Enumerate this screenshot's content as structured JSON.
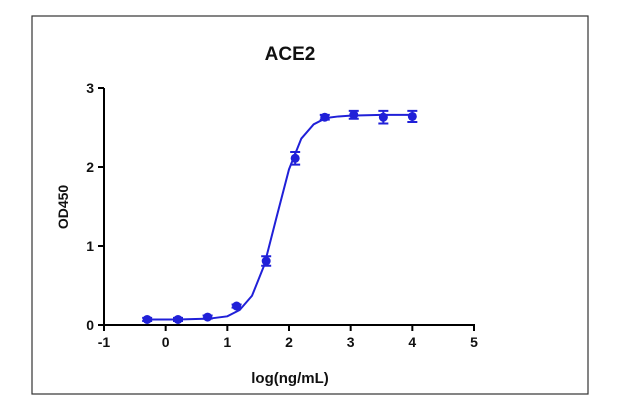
{
  "chart_data": {
    "type": "scatter",
    "title": "ACE2",
    "x_label": "log(ng/mL)",
    "y_label": "OD450",
    "color": "#2020d8",
    "x": [
      -0.3,
      0.2,
      0.68,
      1.15,
      1.63,
      2.1,
      2.58,
      3.05,
      3.53,
      4.0
    ],
    "values": [
      0.07,
      0.07,
      0.1,
      0.24,
      0.81,
      2.11,
      2.63,
      2.66,
      2.63,
      2.64
    ],
    "errors": [
      0.02,
      0.02,
      0.02,
      0.02,
      0.06,
      0.08,
      0.03,
      0.05,
      0.08,
      0.07
    ],
    "fit": {
      "x": [
        -0.3,
        0.2,
        0.7,
        1.0,
        1.2,
        1.4,
        1.6,
        1.8,
        2.0,
        2.2,
        2.4,
        2.6,
        2.8,
        3.0,
        3.5,
        4.0
      ],
      "values": [
        0.07,
        0.07,
        0.08,
        0.11,
        0.19,
        0.37,
        0.76,
        1.37,
        1.97,
        2.36,
        2.54,
        2.62,
        2.64,
        2.65,
        2.66,
        2.66
      ]
    },
    "xlim": [
      -1,
      5
    ],
    "xticks": [
      -1,
      0,
      1,
      2,
      3,
      4,
      5
    ],
    "ylim": [
      0,
      3
    ],
    "yticks": [
      0,
      1,
      2,
      3
    ]
  }
}
